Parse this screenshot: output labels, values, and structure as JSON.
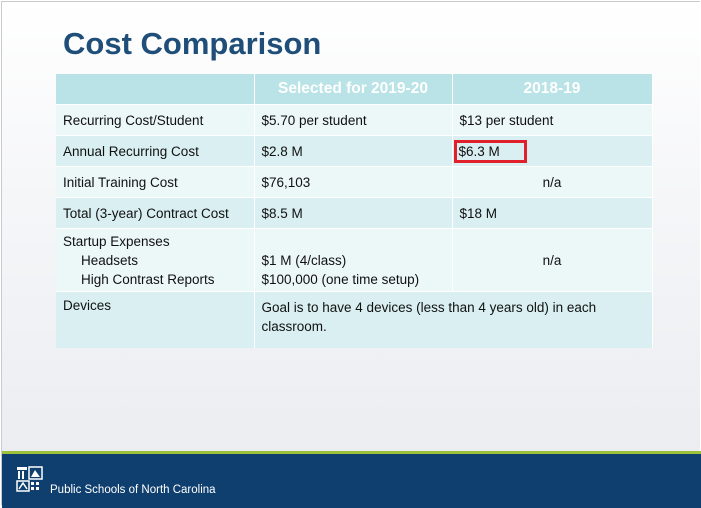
{
  "slide": {
    "title": "Cost Comparison",
    "table": {
      "headers": [
        "",
        "Selected for 2019-20",
        "2018-19"
      ],
      "rows": [
        {
          "label": "Recurring Cost/Student",
          "selected": "$5.70 per student",
          "prior": "$13 per student"
        },
        {
          "label": "Annual Recurring Cost",
          "selected": "$2.8 M",
          "prior": "$6.3 M"
        },
        {
          "label": "Initial Training Cost",
          "selected": "$76,103",
          "prior": "n/a"
        },
        {
          "label": "Total (3-year) Contract Cost",
          "selected": "$8.5 M",
          "prior": "$18 M"
        },
        {
          "label": "Startup Expenses",
          "sub_labels": [
            "Headsets",
            "High Contrast Reports"
          ],
          "selected_lines": [
            "$1 M (4/class)",
            "$100,000 (one time setup)"
          ],
          "prior": "n/a"
        },
        {
          "label": "Devices",
          "merged_value": "Goal is to have 4 devices (less than 4 years old) in each classroom."
        }
      ]
    },
    "highlight_color": "#e0202a",
    "title_color": "#1f4e79"
  },
  "footer": {
    "logo": "nc-seal-icon",
    "text": "Public Schools of North Carolina"
  }
}
